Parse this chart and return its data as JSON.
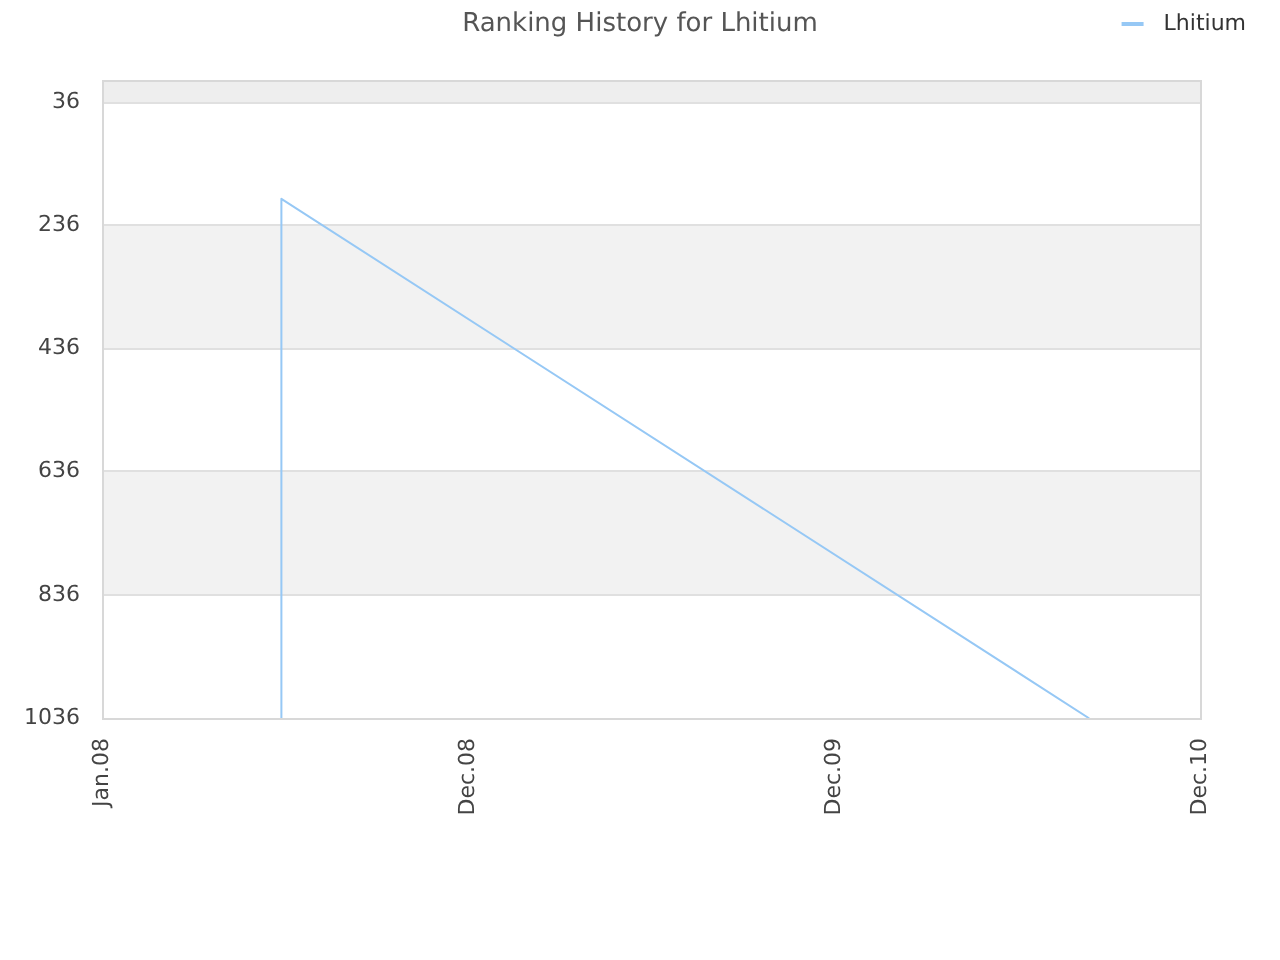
{
  "chart_data": {
    "type": "line",
    "title": "Ranking History for Lhitium",
    "x": [
      "2008-06-23",
      "2008-06-23",
      "2010-08-15"
    ],
    "series": [
      {
        "name": "Lhitium",
        "color": "#96c8f5",
        "values": [
          1036,
          193,
          1036
        ]
      }
    ],
    "xlim": [
      "2008-01-01",
      "2010-12-01"
    ],
    "xticks": [
      {
        "value": "2008-01-01",
        "label": "Jan.08"
      },
      {
        "value": "2008-12-21",
        "label": "Dec.08"
      },
      {
        "value": "2009-12-11",
        "label": "Dec.09"
      },
      {
        "value": "2010-12-01",
        "label": "Dec.10"
      }
    ],
    "ylim": [
      1036,
      0
    ],
    "yticks": [
      36,
      236,
      436,
      636,
      836,
      1036
    ],
    "bands": [
      {
        "axis": "y",
        "from": 0,
        "to": 36,
        "color": "#eeeeee"
      },
      {
        "axis": "y",
        "from": 236,
        "to": 436,
        "color": "#f2f2f2"
      },
      {
        "axis": "y",
        "from": 636,
        "to": 836,
        "color": "#f2f2f2"
      }
    ],
    "grid": "y",
    "legend": "top right",
    "marker": "none"
  }
}
